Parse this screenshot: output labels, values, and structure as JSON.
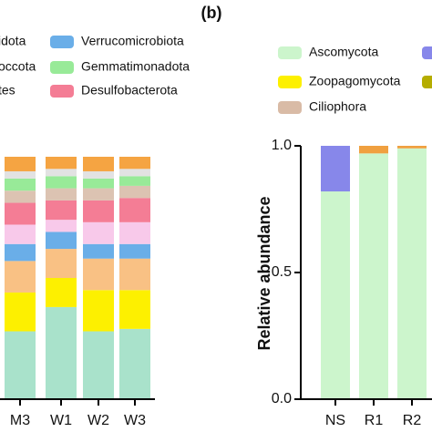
{
  "chart_data": [
    {
      "type": "stacked_bar",
      "legend_fragments": [
        "idota",
        "occota",
        "tes"
      ],
      "categories": [
        "M3",
        "W1",
        "W2",
        "W3"
      ],
      "ylim": [
        0,
        1
      ],
      "series": [
        {
          "color": "#a9e2cb",
          "values": [
            0.28,
            0.38,
            0.28,
            0.29
          ]
        },
        {
          "color": "#fdf000",
          "values": [
            0.16,
            0.12,
            0.17,
            0.16
          ]
        },
        {
          "color": "#f9c184",
          "values": [
            0.13,
            0.12,
            0.13,
            0.13
          ]
        },
        {
          "name": "Verrucomicrobiota",
          "color": "#6aaee8",
          "values": [
            0.07,
            0.07,
            0.06,
            0.06
          ]
        },
        {
          "color": "#f8c9ea",
          "values": [
            0.08,
            0.05,
            0.09,
            0.09
          ]
        },
        {
          "name": "Desulfobacterota",
          "color": "#f47d95",
          "values": [
            0.09,
            0.08,
            0.09,
            0.1
          ]
        },
        {
          "color": "#dcc3b2",
          "values": [
            0.05,
            0.05,
            0.05,
            0.05
          ]
        },
        {
          "name": "Gemmatimonadota",
          "color": "#98ea98",
          "values": [
            0.05,
            0.05,
            0.04,
            0.04
          ]
        },
        {
          "color": "#e2e2e2",
          "values": [
            0.03,
            0.03,
            0.03,
            0.03
          ]
        },
        {
          "color": "#f5a442",
          "values": [
            0.06,
            0.05,
            0.06,
            0.05
          ]
        }
      ]
    },
    {
      "type": "stacked_bar",
      "title": "(b)",
      "y_label": "Relative  abundance",
      "categories": [
        "NS",
        "R1",
        "R2"
      ],
      "ylim": [
        0,
        1
      ],
      "yticks": [
        {
          "value": 0,
          "label": "0.0"
        },
        {
          "value": 0.5,
          "label": "0.5"
        },
        {
          "value": 1,
          "label": "1.0"
        }
      ],
      "series": [
        {
          "name": "Ascomycota",
          "color": "#ccf5cc",
          "values": [
            0.82,
            0.97,
            0.99
          ]
        },
        {
          "color": "#8787ea",
          "values": [
            0.18,
            0,
            0
          ]
        },
        {
          "name": "Zoopagomycota",
          "color": "#fdf000",
          "values": [
            0,
            0,
            0
          ]
        },
        {
          "color": "#b5ad00",
          "values": [
            0,
            0,
            0
          ]
        },
        {
          "name": "Ciliophora",
          "color": "#d9bba6",
          "values": [
            0,
            0,
            0
          ]
        },
        {
          "color": "#f0a040",
          "values": [
            0,
            0.03,
            0.01
          ]
        }
      ]
    }
  ]
}
